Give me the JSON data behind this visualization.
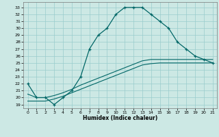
{
  "xlabel": "Humidex (Indice chaleur)",
  "bg_color": "#cce8e4",
  "grid_color": "#99cccc",
  "line_color": "#006666",
  "xlim": [
    -0.5,
    21.5
  ],
  "ylim": [
    18.5,
    33.8
  ],
  "xticks": [
    0,
    1,
    2,
    3,
    4,
    5,
    6,
    7,
    8,
    9,
    10,
    11,
    12,
    13,
    14,
    15,
    16,
    17,
    18,
    19,
    20,
    21
  ],
  "yticks": [
    19,
    20,
    21,
    22,
    23,
    24,
    25,
    26,
    27,
    28,
    29,
    30,
    31,
    32,
    33
  ],
  "main_x": [
    0,
    1,
    2,
    3,
    4,
    5,
    6,
    7,
    8,
    9,
    10,
    11,
    12,
    13,
    14,
    15,
    16,
    17,
    18,
    19,
    20,
    21
  ],
  "main_y": [
    22,
    20,
    20,
    19,
    20,
    21,
    23,
    27,
    29,
    30,
    32,
    33,
    33,
    33,
    32,
    31,
    30,
    28,
    27,
    26,
    25.5,
    25
  ],
  "line2_x": [
    0,
    1,
    2,
    3,
    4,
    5,
    6,
    7,
    8,
    9,
    10,
    11,
    12,
    13,
    14,
    15,
    16,
    17,
    18,
    19,
    20,
    21
  ],
  "line2_y": [
    20.5,
    20.0,
    20.0,
    20.3,
    20.7,
    21.2,
    21.8,
    22.3,
    22.8,
    23.3,
    23.8,
    24.3,
    24.8,
    25.3,
    25.5,
    25.5,
    25.5,
    25.5,
    25.5,
    25.5,
    25.5,
    25.5
  ],
  "line3_x": [
    0,
    1,
    2,
    3,
    4,
    5,
    6,
    7,
    8,
    9,
    10,
    11,
    12,
    13,
    14,
    15,
    16,
    17,
    18,
    19,
    20,
    21
  ],
  "line3_y": [
    19.5,
    19.5,
    19.5,
    19.8,
    20.2,
    20.7,
    21.2,
    21.7,
    22.2,
    22.7,
    23.2,
    23.7,
    24.2,
    24.7,
    24.9,
    25.0,
    25.0,
    25.0,
    25.0,
    25.0,
    25.0,
    25.0
  ]
}
